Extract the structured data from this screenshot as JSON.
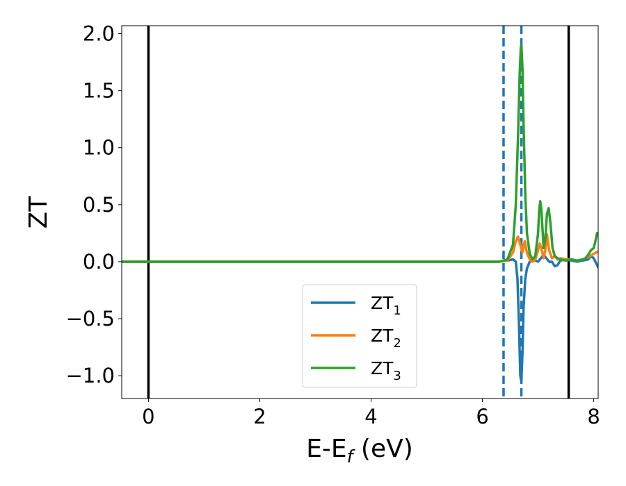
{
  "chart_data": {
    "type": "line",
    "title": "",
    "xlabel": {
      "main": "E-E",
      "sub": "f",
      "unit": " (eV)"
    },
    "ylabel": "ZT",
    "xlim": [
      -0.48,
      8.08
    ],
    "ylim": [
      -1.2,
      2.07
    ],
    "xticks": [
      0,
      2,
      4,
      6,
      8
    ],
    "xtick_labels": [
      "0",
      "2",
      "4",
      "6",
      "8"
    ],
    "yticks": [
      -1.0,
      -0.5,
      0.0,
      0.5,
      1.0,
      1.5,
      2.0
    ],
    "ytick_labels": [
      "−1.0",
      "−0.5",
      "0.0",
      "0.5",
      "1.0",
      "1.5",
      "2.0"
    ],
    "grid": false,
    "legend_position": "lower-center",
    "vlines": [
      {
        "x": 0.0,
        "style": "solid",
        "color": "#000000"
      },
      {
        "x": 6.38,
        "style": "dashed",
        "color": "#1f77b4"
      },
      {
        "x": 6.7,
        "style": "dashed",
        "color": "#1f77b4"
      },
      {
        "x": 7.55,
        "style": "solid",
        "color": "#000000"
      }
    ],
    "series": [
      {
        "name": "ZT",
        "sub": "1",
        "color": "#1f77b4",
        "x": [
          -0.48,
          6.3,
          6.45,
          6.55,
          6.6,
          6.63,
          6.66,
          6.68,
          6.7,
          6.72,
          6.74,
          6.77,
          6.8,
          6.85,
          6.9,
          6.95,
          7.0,
          7.05,
          7.1,
          7.15,
          7.2,
          7.25,
          7.3,
          7.35,
          7.4,
          7.5,
          7.6,
          7.7,
          7.8,
          7.9,
          7.95,
          8.0,
          8.05,
          8.08
        ],
        "y": [
          0,
          0,
          0.01,
          0.02,
          0.0,
          -0.15,
          -0.6,
          -1.0,
          -1.05,
          -0.8,
          -0.4,
          -0.15,
          -0.06,
          0.0,
          0.02,
          0.01,
          0.0,
          0.03,
          0.06,
          0.03,
          0.0,
          0.0,
          -0.04,
          -0.03,
          0.01,
          0.02,
          0.01,
          0.0,
          0.01,
          0.02,
          0.05,
          0.03,
          -0.02,
          -0.05
        ]
      },
      {
        "name": "ZT",
        "sub": "2",
        "color": "#ff7f0e",
        "x": [
          -0.48,
          6.3,
          6.45,
          6.55,
          6.6,
          6.64,
          6.68,
          6.72,
          6.76,
          6.8,
          6.85,
          6.9,
          6.95,
          7.0,
          7.03,
          7.06,
          7.1,
          7.13,
          7.16,
          7.2,
          7.25,
          7.3,
          7.35,
          7.4,
          7.5,
          7.6,
          7.7,
          7.8,
          7.9,
          8.0,
          8.08
        ],
        "y": [
          0,
          0,
          0.01,
          0.08,
          0.18,
          0.22,
          0.15,
          0.08,
          0.18,
          0.08,
          0.02,
          0.0,
          0.02,
          0.1,
          0.16,
          0.12,
          0.03,
          0.1,
          0.24,
          0.1,
          0.03,
          0.05,
          0.02,
          0.03,
          0.02,
          0.02,
          0.01,
          0.02,
          0.04,
          0.07,
          0.09
        ]
      },
      {
        "name": "ZT",
        "sub": "3",
        "color": "#2ca02c",
        "x": [
          -0.48,
          6.3,
          6.45,
          6.55,
          6.6,
          6.64,
          6.67,
          6.69,
          6.7,
          6.72,
          6.74,
          6.77,
          6.8,
          6.85,
          6.9,
          6.95,
          7.0,
          7.02,
          7.04,
          7.06,
          7.1,
          7.13,
          7.16,
          7.19,
          7.22,
          7.26,
          7.3,
          7.35,
          7.4,
          7.5,
          7.6,
          7.7,
          7.8,
          7.85,
          7.9,
          7.95,
          8.0,
          8.03,
          8.06,
          8.08
        ],
        "y": [
          0,
          0,
          0.02,
          0.15,
          0.5,
          1.1,
          1.65,
          1.88,
          1.9,
          1.7,
          1.2,
          0.6,
          0.25,
          0.07,
          0.02,
          0.05,
          0.25,
          0.45,
          0.53,
          0.45,
          0.12,
          0.2,
          0.42,
          0.47,
          0.35,
          0.12,
          0.05,
          0.03,
          0.02,
          0.01,
          0.02,
          0.01,
          0.02,
          0.03,
          0.06,
          0.1,
          0.12,
          0.18,
          0.25,
          0.24
        ]
      }
    ]
  }
}
